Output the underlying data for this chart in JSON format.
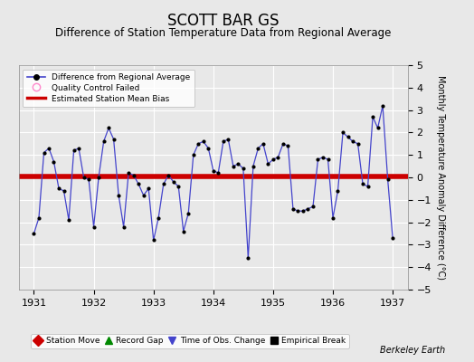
{
  "title": "SCOTT BAR GS",
  "subtitle": "Difference of Station Temperature Data from Regional Average",
  "ylabel": "Monthly Temperature Anomaly Difference (°C)",
  "bias_value": 0.05,
  "ylim": [
    -5,
    5
  ],
  "xlim": [
    1930.75,
    1937.25
  ],
  "xticks": [
    1931,
    1932,
    1933,
    1934,
    1935,
    1936,
    1937
  ],
  "yticks": [
    -5,
    -4,
    -3,
    -2,
    -1,
    0,
    1,
    2,
    3,
    4,
    5
  ],
  "background_color": "#e8e8e8",
  "grid_color": "#ffffff",
  "line_color": "#4444cc",
  "dot_color": "#000000",
  "bias_color": "#cc0000",
  "x_data": [
    1931.0,
    1931.083,
    1931.167,
    1931.25,
    1931.333,
    1931.417,
    1931.5,
    1931.583,
    1931.667,
    1931.75,
    1931.833,
    1931.917,
    1932.0,
    1932.083,
    1932.167,
    1932.25,
    1932.333,
    1932.417,
    1932.5,
    1932.583,
    1932.667,
    1932.75,
    1932.833,
    1932.917,
    1933.0,
    1933.083,
    1933.167,
    1933.25,
    1933.333,
    1933.417,
    1933.5,
    1933.583,
    1933.667,
    1933.75,
    1933.833,
    1933.917,
    1934.0,
    1934.083,
    1934.167,
    1934.25,
    1934.333,
    1934.417,
    1934.5,
    1934.583,
    1934.667,
    1934.75,
    1934.833,
    1934.917,
    1935.0,
    1935.083,
    1935.167,
    1935.25,
    1935.333,
    1935.417,
    1935.5,
    1935.583,
    1935.667,
    1935.75,
    1935.833,
    1935.917,
    1936.0,
    1936.083,
    1936.167,
    1936.25,
    1936.333,
    1936.417,
    1936.5,
    1936.583,
    1936.667,
    1936.75,
    1936.833,
    1936.917,
    1937.0
  ],
  "y_data": [
    -2.5,
    -1.8,
    1.1,
    1.3,
    0.7,
    -0.5,
    -0.6,
    -1.9,
    1.2,
    1.3,
    0.0,
    -0.1,
    -2.2,
    0.0,
    1.6,
    2.2,
    1.7,
    -0.8,
    -2.2,
    0.2,
    0.1,
    -0.3,
    -0.8,
    -0.5,
    -2.8,
    -1.8,
    -0.3,
    0.1,
    -0.2,
    -0.4,
    -2.4,
    -1.6,
    1.0,
    1.5,
    1.6,
    1.3,
    0.3,
    0.2,
    1.6,
    1.7,
    0.5,
    0.6,
    0.4,
    -3.6,
    0.5,
    1.3,
    1.5,
    0.6,
    0.8,
    0.9,
    1.5,
    1.4,
    -1.4,
    -1.5,
    -1.5,
    -1.4,
    -1.3,
    0.8,
    0.9,
    0.8,
    -1.8,
    -0.6,
    2.0,
    1.8,
    1.6,
    1.5,
    -0.3,
    -0.4,
    2.7,
    2.2,
    3.2,
    -0.1,
    -2.7
  ],
  "legend_line_label": "Difference from Regional Average",
  "legend_circle_label": "Quality Control Failed",
  "legend_bias_label": "Estimated Station Mean Bias",
  "legend_line_color": "#4444cc",
  "legend_circle_color": "#ff88cc",
  "legend_bias_color": "#cc0000",
  "bottom_legend": [
    {
      "label": "Station Move",
      "color": "#cc0000",
      "marker": "D"
    },
    {
      "label": "Record Gap",
      "color": "#008800",
      "marker": "^"
    },
    {
      "label": "Time of Obs. Change",
      "color": "#4444cc",
      "marker": "v"
    },
    {
      "label": "Empirical Break",
      "color": "#000000",
      "marker": "s"
    }
  ],
  "berkeley_earth_text": "Berkeley Earth",
  "title_fontsize": 12,
  "subtitle_fontsize": 8.5,
  "tick_fontsize": 8,
  "ylabel_fontsize": 7
}
